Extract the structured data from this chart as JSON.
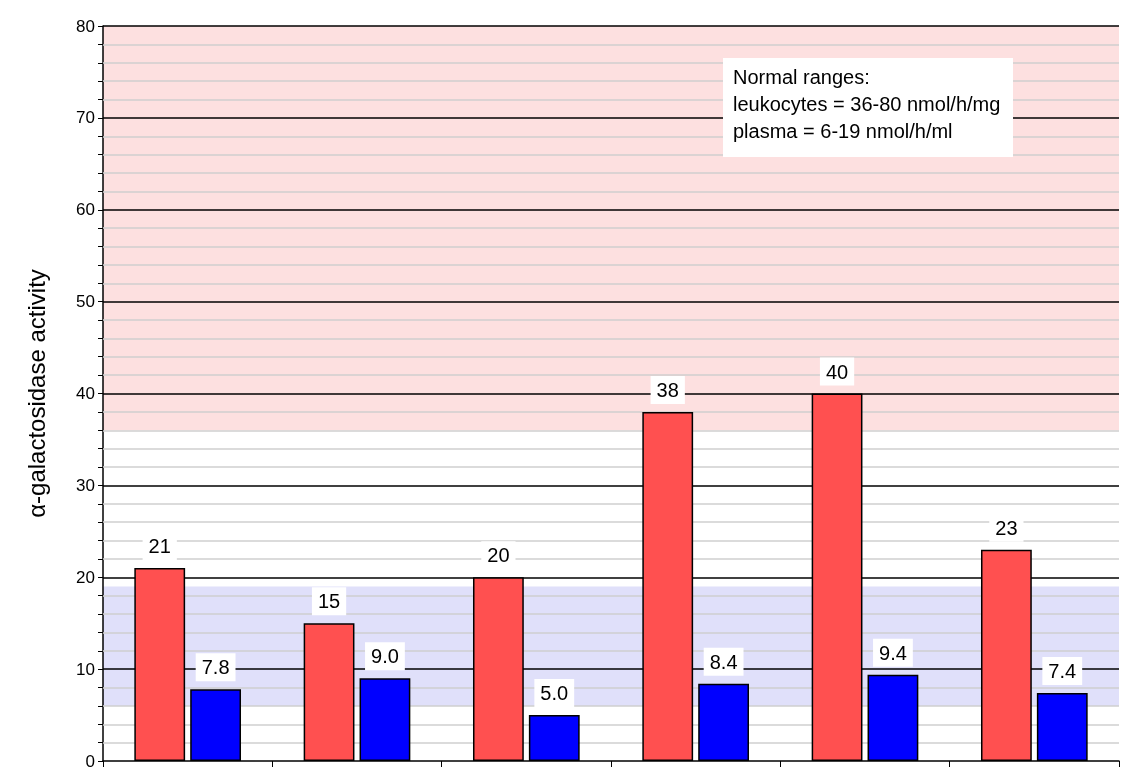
{
  "chart_data": {
    "type": "bar",
    "ylabel": "α-galactosidase activity",
    "categories": [
      null,
      null,
      null,
      null,
      null,
      null
    ],
    "series": [
      {
        "color": "#ff5050",
        "values": [
          21,
          15,
          20,
          38,
          40,
          23
        ],
        "value_labels": [
          "21",
          "15",
          "20",
          "38",
          "40",
          "23"
        ]
      },
      {
        "color": "#0000ff",
        "values": [
          7.8,
          9.0,
          5.0,
          8.4,
          9.4,
          7.4
        ],
        "value_labels": [
          "7.8",
          "9.0",
          "5.0",
          "8.4",
          "9.4",
          "7.4"
        ]
      }
    ],
    "ylim": [
      0,
      80
    ],
    "yticks": [
      0,
      {
        "value": 2,
        "label": null
      },
      {
        "value": 4,
        "label": null
      },
      {
        "value": 6,
        "label": null
      },
      {
        "value": 8,
        "label": null
      },
      10,
      {
        "value": 12,
        "label": null
      },
      {
        "value": 14,
        "label": null
      },
      {
        "value": 16,
        "label": null
      },
      {
        "value": 18,
        "label": null
      },
      20,
      {
        "value": 22,
        "label": null
      },
      {
        "value": 24,
        "label": null
      },
      {
        "value": 26,
        "label": null
      },
      {
        "value": 28,
        "label": null
      },
      30,
      {
        "value": 32,
        "label": null
      },
      {
        "value": 34,
        "label": null
      },
      {
        "value": 36,
        "label": null
      },
      {
        "value": 38,
        "label": null
      },
      40,
      {
        "value": 42,
        "label": null
      },
      {
        "value": 44,
        "label": null
      },
      {
        "value": 46,
        "label": null
      },
      {
        "value": 48,
        "label": null
      },
      50,
      {
        "value": 52,
        "label": null
      },
      {
        "value": 54,
        "label": null
      },
      {
        "value": 56,
        "label": null
      },
      {
        "value": 58,
        "label": null
      },
      60,
      {
        "value": 62,
        "label": null
      },
      {
        "value": 64,
        "label": null
      },
      {
        "value": 66,
        "label": null
      },
      {
        "value": 68,
        "label": null
      },
      70,
      {
        "value": 72,
        "label": null
      },
      {
        "value": 74,
        "label": null
      },
      {
        "value": 76,
        "label": null
      },
      {
        "value": 78,
        "label": null
      },
      80
    ],
    "grid": true,
    "bands": [
      {
        "axis": "y",
        "from": 36,
        "to": 80,
        "color": "#fde0e0"
      },
      {
        "axis": "y",
        "from": 6,
        "to": 19,
        "color": "#e0e0fa"
      }
    ],
    "annotations": [
      "Normal ranges:",
      "leukocytes = 36-80 nmol/h/mg",
      "plasma = 6-19 nmol/h/ml"
    ]
  }
}
